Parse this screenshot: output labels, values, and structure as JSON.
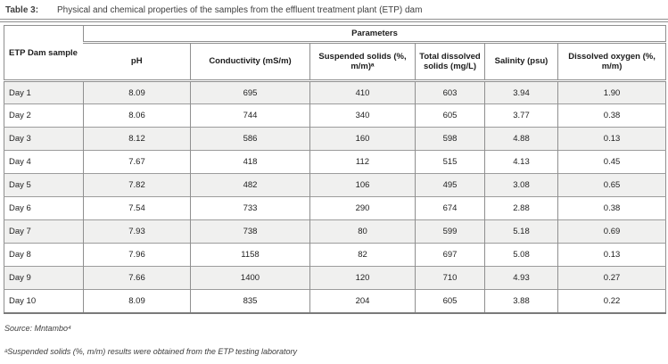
{
  "caption": {
    "label": "Table 3:",
    "text": "Physical and chemical properties of the samples from the effluent treatment plant (ETP) dam"
  },
  "table": {
    "corner_header": "ETP Dam sample",
    "group_header": "Parameters",
    "columns": [
      "pH",
      "Conductivity (mS/m)",
      "Suspended solids (%, m/m)ᵃ",
      "Total dissolved solids (mg/L)",
      "Salinity (psu)",
      "Dissolved oxygen (%, m/m)"
    ],
    "rows": [
      {
        "label": "Day 1",
        "values": [
          "8.09",
          "695",
          "410",
          "603",
          "3.94",
          "1.90"
        ]
      },
      {
        "label": "Day 2",
        "values": [
          "8.06",
          "744",
          "340",
          "605",
          "3.77",
          "0.38"
        ]
      },
      {
        "label": "Day 3",
        "values": [
          "8.12",
          "586",
          "160",
          "598",
          "4.88",
          "0.13"
        ]
      },
      {
        "label": "Day 4",
        "values": [
          "7.67",
          "418",
          "112",
          "515",
          "4.13",
          "0.45"
        ]
      },
      {
        "label": "Day 5",
        "values": [
          "7.82",
          "482",
          "106",
          "495",
          "3.08",
          "0.65"
        ]
      },
      {
        "label": "Day 6",
        "values": [
          "7.54",
          "733",
          "290",
          "674",
          "2.88",
          "0.38"
        ]
      },
      {
        "label": "Day 7",
        "values": [
          "7.93",
          "738",
          "80",
          "599",
          "5.18",
          "0.69"
        ]
      },
      {
        "label": "Day 8",
        "values": [
          "7.96",
          "1158",
          "82",
          "697",
          "5.08",
          "0.13"
        ]
      },
      {
        "label": "Day 9",
        "values": [
          "7.66",
          "1400",
          "120",
          "710",
          "4.93",
          "0.27"
        ]
      },
      {
        "label": "Day 10",
        "values": [
          "8.09",
          "835",
          "204",
          "605",
          "3.88",
          "0.22"
        ]
      }
    ]
  },
  "footnotes": {
    "source": "Source: Mntambo⁴",
    "note_a": "ᵃSuspended solids (%, m/m) results were obtained from the ETP testing laboratory"
  },
  "colors": {
    "border_gray": "#8f8f8f",
    "row_shade": "#f0f0ef",
    "text": "#222222"
  }
}
